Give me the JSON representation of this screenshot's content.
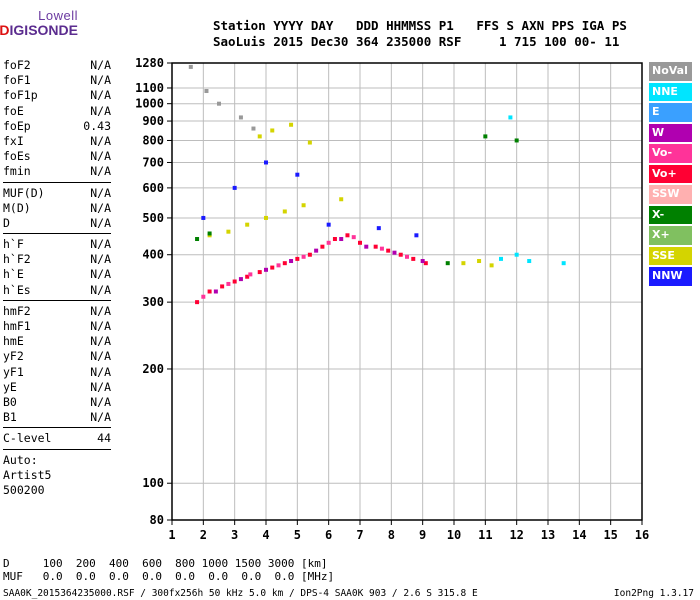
{
  "logo": {
    "line1": "Lowell",
    "line2": "DIGISONDE"
  },
  "header": {
    "line1": "Station YYYY DAY   DDD HHMMSS P1   FFS S AXN PPS IGA PS",
    "line2": "SaoLuis 2015 Dec30 364 235000 RSF     1 715 100 00- 11"
  },
  "params": [
    [
      {
        "k": "foF2",
        "v": "N/A"
      },
      {
        "k": "foF1",
        "v": "N/A"
      },
      {
        "k": "foF1p",
        "v": "N/A"
      },
      {
        "k": "foE",
        "v": "N/A"
      },
      {
        "k": "foEp",
        "v": "0.43"
      },
      {
        "k": "fxI",
        "v": "N/A"
      },
      {
        "k": "foEs",
        "v": "N/A"
      },
      {
        "k": "fmin",
        "v": "N/A"
      }
    ],
    [
      {
        "k": "MUF(D)",
        "v": "N/A"
      },
      {
        "k": "M(D)",
        "v": "N/A"
      },
      {
        "k": "D",
        "v": "N/A"
      }
    ],
    [
      {
        "k": "h`F",
        "v": "N/A"
      },
      {
        "k": "h`F2",
        "v": "N/A"
      },
      {
        "k": "h`E",
        "v": "N/A"
      },
      {
        "k": "h`Es",
        "v": "N/A"
      }
    ],
    [
      {
        "k": "hmF2",
        "v": "N/A"
      },
      {
        "k": "hmF1",
        "v": "N/A"
      },
      {
        "k": "hmE",
        "v": "N/A"
      },
      {
        "k": "yF2",
        "v": "N/A"
      },
      {
        "k": "yF1",
        "v": "N/A"
      },
      {
        "k": "yE",
        "v": "N/A"
      },
      {
        "k": "B0",
        "v": "N/A"
      },
      {
        "k": "B1",
        "v": "N/A"
      }
    ],
    [
      {
        "k": "C-level",
        "v": "44"
      }
    ],
    [
      {
        "k": "Auto:",
        "v": ""
      },
      {
        "k": "Artist5",
        "v": ""
      },
      {
        "k": "500200",
        "v": ""
      }
    ]
  ],
  "legend": [
    {
      "label": "NoVal",
      "color": "#999999"
    },
    {
      "label": "NNE",
      "color": "#00e5ff"
    },
    {
      "label": "E",
      "color": "#3aa0ff"
    },
    {
      "label": "W",
      "color": "#b000b0"
    },
    {
      "label": "Vo-",
      "color": "#ff3399"
    },
    {
      "label": "Vo+",
      "color": "#ff0033"
    },
    {
      "label": "SSW",
      "color": "#ffb0b0"
    },
    {
      "label": "X-",
      "color": "#008000"
    },
    {
      "label": "X+",
      "color": "#80c060"
    },
    {
      "label": "SSE",
      "color": "#d4d400"
    },
    {
      "label": "NNW",
      "color": "#1a1aff"
    }
  ],
  "footer": {
    "d_line": "D     100  200  400  600  800 1000 1500 3000 [km]",
    "muf_line": "MUF   0.0  0.0  0.0  0.0  0.0  0.0  0.0  0.0 [MHz]",
    "file_line": "SAA0K_2015364235000.RSF / 300fx256h 50 kHz 5.0 km / DPS-4 SAA0K 903 / 2.6 S 315.8 E",
    "version": "Ion2Png 1.3.17"
  },
  "chart_data": {
    "type": "scatter",
    "xlabel": "",
    "ylabel": "",
    "xlim": [
      1,
      16
    ],
    "ylim": [
      80,
      1280
    ],
    "yscale": "log",
    "x_ticks": [
      1,
      2,
      3,
      4,
      5,
      6,
      7,
      8,
      9,
      10,
      11,
      12,
      13,
      14,
      15,
      16
    ],
    "y_ticks": [
      80,
      100,
      200,
      300,
      400,
      500,
      600,
      700,
      800,
      900,
      1000,
      1100,
      1280
    ],
    "grid": true,
    "legend_position": "right",
    "series": [
      {
        "name": "Vo+",
        "color": "#ff0033",
        "points": [
          [
            1.8,
            300
          ],
          [
            2.2,
            320
          ],
          [
            2.6,
            330
          ],
          [
            3.0,
            340
          ],
          [
            3.4,
            350
          ],
          [
            3.8,
            360
          ],
          [
            4.2,
            370
          ],
          [
            4.6,
            380
          ],
          [
            5.0,
            390
          ],
          [
            5.4,
            400
          ],
          [
            5.8,
            420
          ],
          [
            6.2,
            440
          ],
          [
            6.6,
            450
          ],
          [
            7.0,
            430
          ],
          [
            7.5,
            420
          ],
          [
            7.9,
            410
          ],
          [
            8.3,
            400
          ],
          [
            8.7,
            390
          ],
          [
            9.1,
            380
          ]
        ]
      },
      {
        "name": "Vo-",
        "color": "#ff3399",
        "points": [
          [
            2.0,
            310
          ],
          [
            2.8,
            335
          ],
          [
            3.5,
            355
          ],
          [
            4.4,
            375
          ],
          [
            5.2,
            395
          ],
          [
            6.0,
            430
          ],
          [
            6.8,
            445
          ],
          [
            7.7,
            415
          ],
          [
            8.5,
            395
          ]
        ]
      },
      {
        "name": "W",
        "color": "#b000b0",
        "points": [
          [
            2.4,
            320
          ],
          [
            3.2,
            345
          ],
          [
            4.0,
            365
          ],
          [
            4.8,
            385
          ],
          [
            5.6,
            410
          ],
          [
            6.4,
            440
          ],
          [
            7.2,
            420
          ],
          [
            8.1,
            405
          ],
          [
            9.0,
            385
          ]
        ]
      },
      {
        "name": "SSE",
        "color": "#d4d400",
        "points": [
          [
            2.2,
            450
          ],
          [
            2.8,
            460
          ],
          [
            3.4,
            480
          ],
          [
            4.0,
            500
          ],
          [
            4.6,
            520
          ],
          [
            5.2,
            540
          ],
          [
            6.4,
            560
          ],
          [
            10.3,
            380
          ],
          [
            10.8,
            385
          ],
          [
            11.2,
            375
          ],
          [
            3.8,
            820
          ],
          [
            4.2,
            850
          ],
          [
            4.8,
            880
          ],
          [
            5.4,
            790
          ]
        ]
      },
      {
        "name": "X-",
        "color": "#008000",
        "points": [
          [
            1.8,
            440
          ],
          [
            2.2,
            455
          ],
          [
            9.8,
            380
          ],
          [
            11.0,
            820
          ],
          [
            12.0,
            800
          ]
        ]
      },
      {
        "name": "NNE",
        "color": "#00e5ff",
        "points": [
          [
            11.5,
            390
          ],
          [
            12.0,
            400
          ],
          [
            12.4,
            385
          ],
          [
            13.5,
            380
          ],
          [
            11.8,
            920
          ]
        ]
      },
      {
        "name": "NNW",
        "color": "#1a1aff",
        "points": [
          [
            2.0,
            500
          ],
          [
            3.0,
            600
          ],
          [
            4.0,
            700
          ],
          [
            5.0,
            650
          ],
          [
            6.0,
            480
          ],
          [
            7.6,
            470
          ],
          [
            8.8,
            450
          ]
        ]
      },
      {
        "name": "NoVal",
        "color": "#999999",
        "points": [
          [
            1.6,
            1250
          ],
          [
            2.1,
            1080
          ],
          [
            2.5,
            1000
          ],
          [
            3.2,
            920
          ],
          [
            3.6,
            860
          ]
        ]
      }
    ]
  }
}
